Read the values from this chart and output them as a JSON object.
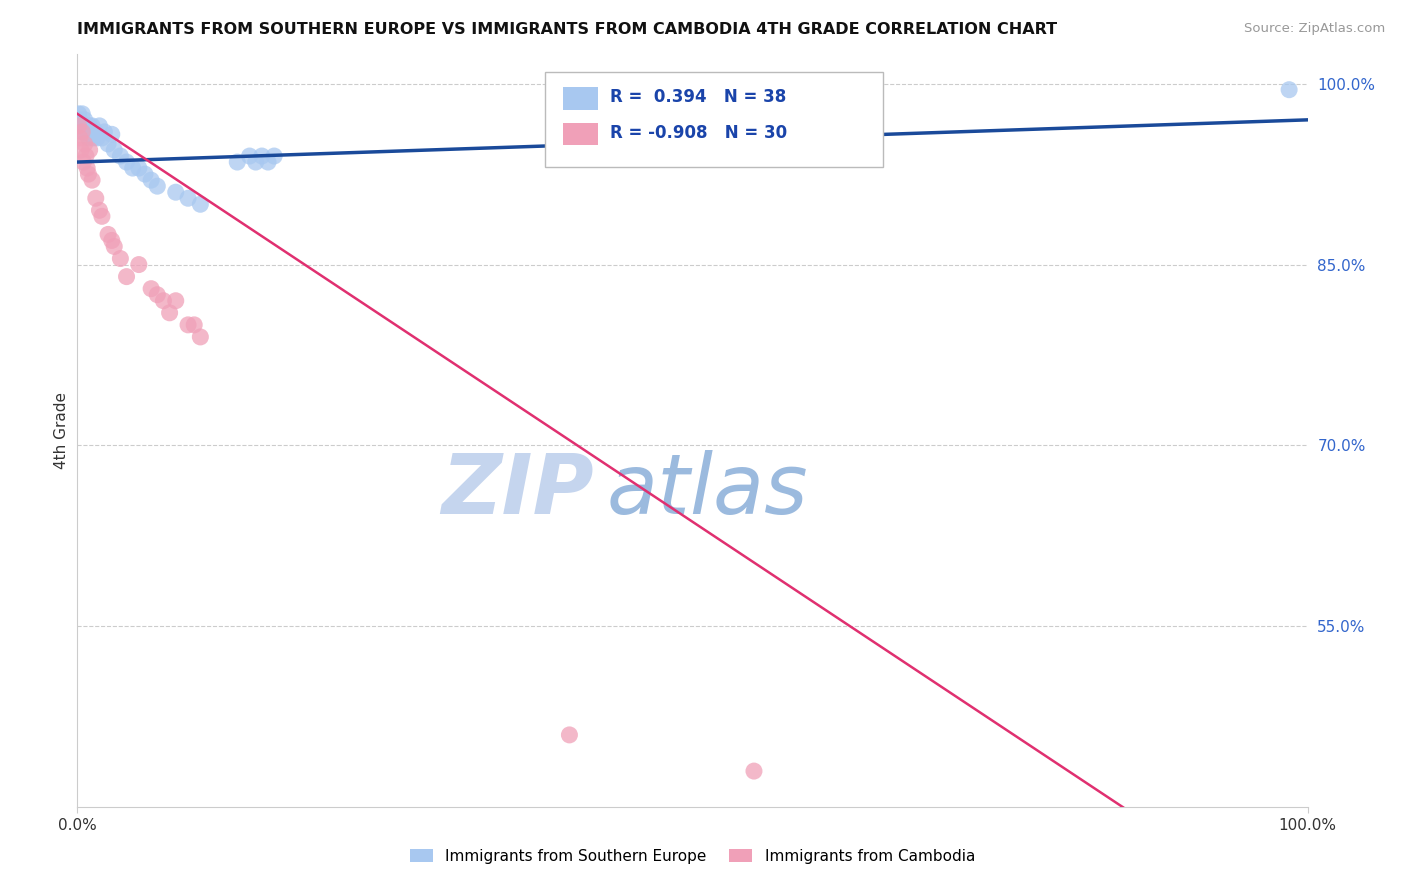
{
  "title": "IMMIGRANTS FROM SOUTHERN EUROPE VS IMMIGRANTS FROM CAMBODIA 4TH GRADE CORRELATION CHART",
  "source": "Source: ZipAtlas.com",
  "ylabel": "4th Grade",
  "right_yticks": [
    "55.0%",
    "70.0%",
    "85.0%",
    "100.0%"
  ],
  "right_ytick_vals": [
    0.55,
    0.7,
    0.85,
    1.0
  ],
  "legend_blue_label": "Immigrants from Southern Europe",
  "legend_pink_label": "Immigrants from Cambodia",
  "R_blue": 0.394,
  "N_blue": 38,
  "R_pink": -0.908,
  "N_pink": 30,
  "blue_color": "#A8C8F0",
  "pink_color": "#F0A0B8",
  "blue_line_color": "#1A4A9A",
  "pink_line_color": "#E03070",
  "background_color": "#FFFFFF",
  "watermark_zip_color": "#C8D8F0",
  "watermark_atlas_color": "#B0C8E8",
  "blue_dots_x": [
    0.001,
    0.002,
    0.003,
    0.004,
    0.005,
    0.006,
    0.007,
    0.008,
    0.009,
    0.01,
    0.011,
    0.012,
    0.013,
    0.015,
    0.016,
    0.018,
    0.02,
    0.022,
    0.025,
    0.028,
    0.03,
    0.035,
    0.04,
    0.045,
    0.05,
    0.055,
    0.06,
    0.065,
    0.08,
    0.09,
    0.1,
    0.13,
    0.14,
    0.145,
    0.15,
    0.155,
    0.16,
    0.985
  ],
  "blue_dots_y": [
    0.975,
    0.97,
    0.965,
    0.975,
    0.96,
    0.97,
    0.965,
    0.96,
    0.955,
    0.965,
    0.96,
    0.965,
    0.955,
    0.96,
    0.955,
    0.965,
    0.955,
    0.96,
    0.95,
    0.958,
    0.945,
    0.94,
    0.935,
    0.93,
    0.93,
    0.925,
    0.92,
    0.915,
    0.91,
    0.905,
    0.9,
    0.935,
    0.94,
    0.935,
    0.94,
    0.935,
    0.94,
    0.995
  ],
  "pink_dots_x": [
    0.001,
    0.002,
    0.003,
    0.004,
    0.005,
    0.006,
    0.007,
    0.008,
    0.009,
    0.01,
    0.012,
    0.015,
    0.018,
    0.02,
    0.025,
    0.028,
    0.03,
    0.035,
    0.04,
    0.05,
    0.06,
    0.065,
    0.07,
    0.075,
    0.08,
    0.09,
    0.095,
    0.1,
    0.4,
    0.55
  ],
  "pink_dots_y": [
    0.965,
    0.955,
    0.945,
    0.96,
    0.935,
    0.95,
    0.94,
    0.93,
    0.925,
    0.945,
    0.92,
    0.905,
    0.895,
    0.89,
    0.875,
    0.87,
    0.865,
    0.855,
    0.84,
    0.85,
    0.83,
    0.825,
    0.82,
    0.81,
    0.82,
    0.8,
    0.8,
    0.79,
    0.46,
    0.43
  ],
  "blue_trend_x0": 0.0,
  "blue_trend_x1": 1.0,
  "blue_trend_y0": 0.935,
  "blue_trend_y1": 0.97,
  "pink_trend_x0": 0.0,
  "pink_trend_x1": 0.85,
  "pink_trend_y0": 0.975,
  "pink_trend_y1": 0.4,
  "xlim": [
    0.0,
    1.0
  ],
  "ylim": [
    0.4,
    1.025
  ],
  "grid_color": "#CCCCCC",
  "spine_color": "#CCCCCC"
}
